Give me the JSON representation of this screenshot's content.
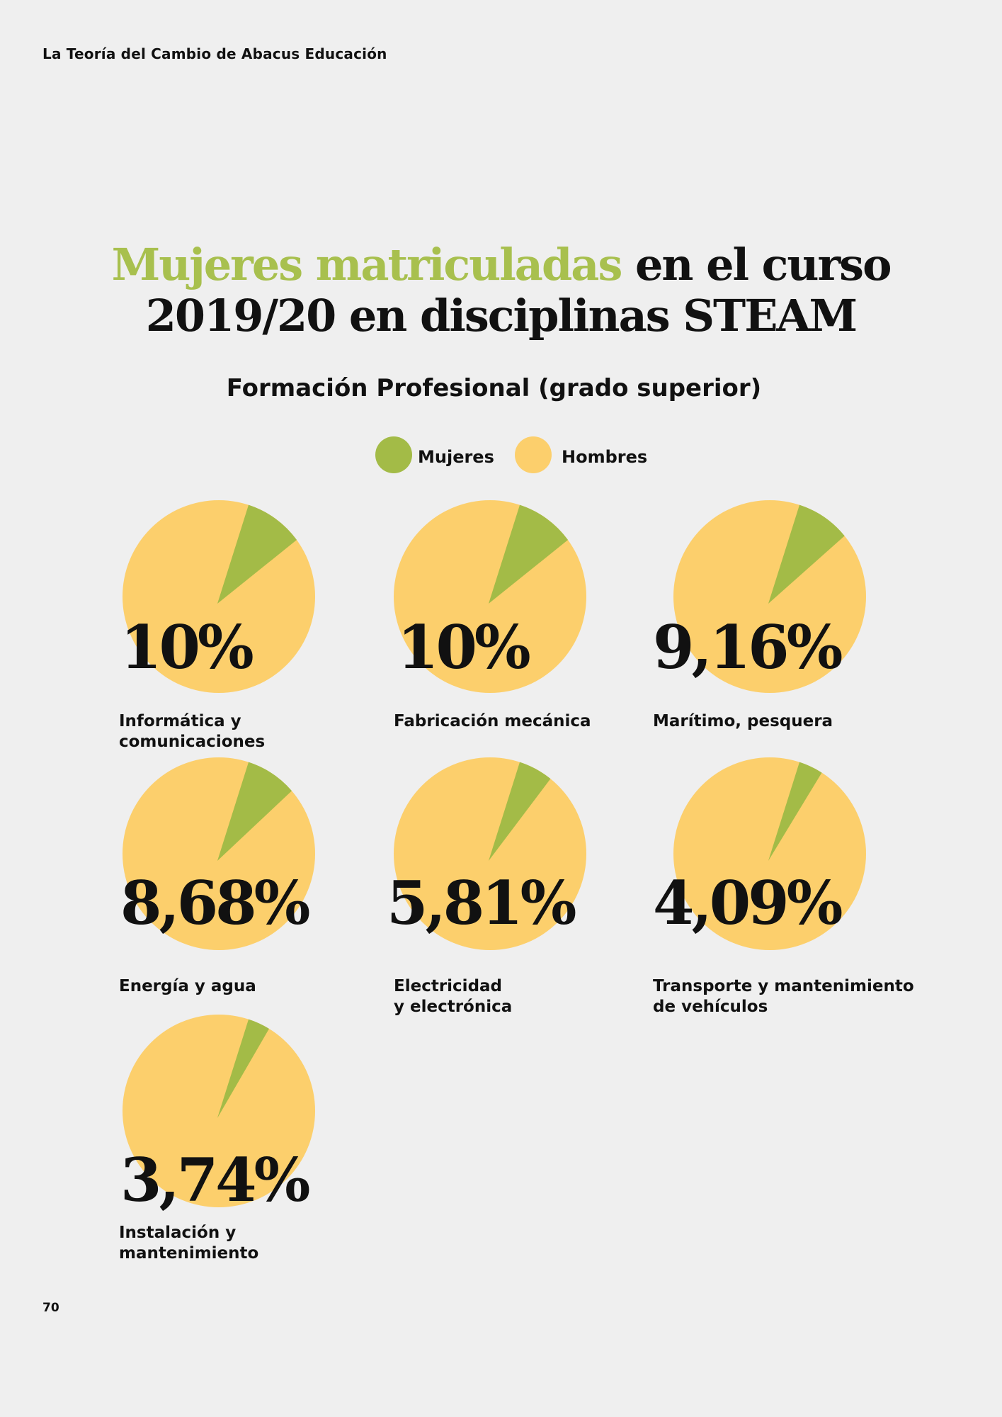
{
  "header": "La Teoría del Cambio de Abacus Educación",
  "page_number": "70",
  "colors": {
    "mujeres": "#a3bb47",
    "hombres": "#fccf6c",
    "background": "#efefef"
  },
  "chart_data": {
    "type": "pie",
    "title_highlight": "Mujeres matriculadas",
    "title_rest_1": " en el curso",
    "title_line_2": "2019/20 en disciplinas STEAM",
    "subtitle": "Formación Profesional (grado superior)",
    "legend": [
      "Mujeres",
      "Hombres"
    ],
    "legend_placement": "top",
    "charts": [
      {
        "label": "Informática y\ncomunicaciones",
        "value_label": "10%",
        "mujeres": 10
      },
      {
        "label": "Fabricación mecánica",
        "value_label": "10%",
        "mujeres": 10
      },
      {
        "label": "Marítimo, pesquera",
        "value_label": "9,16%",
        "mujeres": 9.16
      },
      {
        "label": "Energía y agua",
        "value_label": "8,68%",
        "mujeres": 8.68
      },
      {
        "label": "Electricidad\ny electrónica",
        "value_label": "5,81%",
        "mujeres": 5.81
      },
      {
        "label": "Transporte y mantenimiento\nde vehículos",
        "value_label": "4,09%",
        "mujeres": 4.09
      },
      {
        "label": "Instalación y\nmantenimiento",
        "value_label": "3,74%",
        "mujeres": 3.74
      }
    ]
  }
}
